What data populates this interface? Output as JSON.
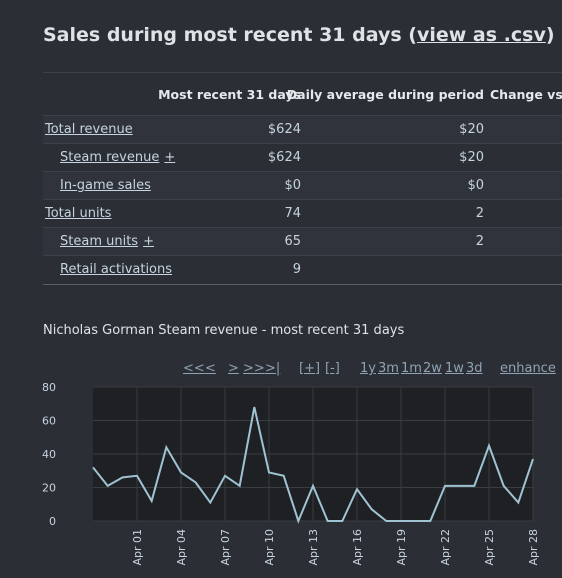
{
  "header": {
    "title": "Sales during most recent 31 days (",
    "link": "view as .csv",
    "title_end": ")"
  },
  "table": {
    "columns": [
      "Most recent 31 days",
      "Daily average during period",
      "Change vs. p"
    ],
    "rows": [
      {
        "label": "Total revenue",
        "recent": "$624",
        "average": "$20"
      },
      {
        "label": "Steam revenue",
        "expand": "+",
        "recent": "$624",
        "average": "$20"
      },
      {
        "label": "In-game sales",
        "recent": "$0",
        "average": "$0"
      },
      {
        "label": "Total units",
        "recent": "74",
        "average": "2"
      },
      {
        "label": "Steam units",
        "expand": "+",
        "recent": "65",
        "average": "2"
      },
      {
        "label": "Retail activations",
        "recent": "9"
      }
    ]
  },
  "controls": [
    "<<",
    "<",
    ">",
    ">>",
    ">|",
    "[+]",
    "[-]",
    "1y",
    "3m",
    "1m",
    "2w",
    "1w",
    "3d",
    "enhance"
  ],
  "chart_data": {
    "type": "line",
    "title": "Nicholas Gorman Steam revenue - most recent 31 days",
    "categories": [
      null,
      null,
      null,
      "Apr 01",
      null,
      null,
      "Apr 04",
      null,
      null,
      "Apr 07",
      null,
      null,
      "Apr 10",
      null,
      null,
      "Apr 13",
      null,
      null,
      "Apr 16",
      null,
      null,
      "Apr 19",
      null,
      null,
      "Apr 22",
      null,
      null,
      "Apr 25",
      null,
      null,
      "Apr 28"
    ],
    "values": [
      32,
      21,
      26,
      27,
      12,
      44,
      29,
      23,
      11,
      27,
      21,
      68,
      29,
      27,
      0,
      21,
      0,
      0,
      19,
      7,
      0,
      0,
      0,
      0,
      21,
      21,
      21,
      45,
      21,
      11,
      37
    ],
    "color": "#9fc3d3",
    "ylim": [
      0,
      80
    ],
    "yticks": [
      0,
      20,
      40,
      60,
      80
    ],
    "grid": true
  }
}
